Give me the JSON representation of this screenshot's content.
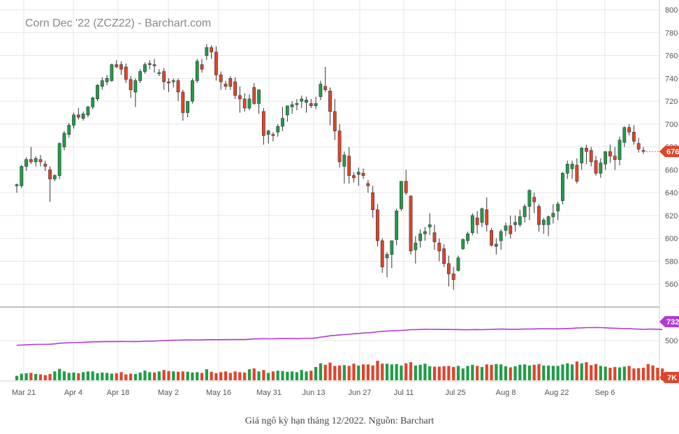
{
  "caption": "Giá ngô kỳ hạn tháng 12/2022. Nguồn: Barchart",
  "colors": {
    "up": "#1f9d47",
    "down": "#e0442a",
    "volume_line": "#b03bd6",
    "grid": "#e6e6e6",
    "text": "#555555",
    "last_price_badge": "#e0442a",
    "volume_badge": "#b03bd6"
  },
  "chart_data": {
    "type": "candlestick",
    "title": "Corn Dec '22 (ZCZ22) - Barchart.com",
    "price_axis": {
      "ticks": [
        560,
        580,
        600,
        620,
        640,
        660,
        680,
        700,
        720,
        740,
        760,
        780,
        800
      ],
      "range": [
        540,
        800
      ]
    },
    "volume_axis": {
      "ticks": [
        "500"
      ],
      "range_k": [
        0,
        1000
      ]
    },
    "x_ticks": [
      "Mar 21",
      "Apr 4",
      "Apr 18",
      "May 2",
      "May 16",
      "May 31",
      "Jun 13",
      "Jun 27",
      "Jul 11",
      "Jul 25",
      "Aug 8",
      "Aug 22",
      "Sep 6"
    ],
    "last_price_label": "676",
    "volume_avg_label": "732",
    "volume_last_label": "7K",
    "candles": [
      {
        "o": 646,
        "h": 648,
        "l": 640,
        "c": 647
      },
      {
        "o": 646,
        "h": 664,
        "l": 644,
        "c": 663
      },
      {
        "o": 663,
        "h": 671,
        "l": 659,
        "c": 669
      },
      {
        "o": 669,
        "h": 680,
        "l": 665,
        "c": 667
      },
      {
        "o": 667,
        "h": 672,
        "l": 663,
        "c": 670
      },
      {
        "o": 669,
        "h": 673,
        "l": 663,
        "c": 667
      },
      {
        "o": 665,
        "h": 668,
        "l": 659,
        "c": 663
      },
      {
        "o": 660,
        "h": 663,
        "l": 632,
        "c": 652
      },
      {
        "o": 652,
        "h": 656,
        "l": 650,
        "c": 655
      },
      {
        "o": 655,
        "h": 684,
        "l": 652,
        "c": 683
      },
      {
        "o": 680,
        "h": 694,
        "l": 677,
        "c": 692
      },
      {
        "o": 691,
        "h": 701,
        "l": 688,
        "c": 699
      },
      {
        "o": 699,
        "h": 710,
        "l": 696,
        "c": 708
      },
      {
        "o": 708,
        "h": 714,
        "l": 704,
        "c": 706
      },
      {
        "o": 705,
        "h": 711,
        "l": 703,
        "c": 709
      },
      {
        "o": 708,
        "h": 716,
        "l": 706,
        "c": 715
      },
      {
        "o": 715,
        "h": 724,
        "l": 713,
        "c": 723
      },
      {
        "o": 722,
        "h": 735,
        "l": 720,
        "c": 734
      },
      {
        "o": 733,
        "h": 741,
        "l": 730,
        "c": 738
      },
      {
        "o": 737,
        "h": 743,
        "l": 734,
        "c": 740
      },
      {
        "o": 738,
        "h": 753,
        "l": 737,
        "c": 752
      },
      {
        "o": 752,
        "h": 756,
        "l": 749,
        "c": 750
      },
      {
        "o": 752,
        "h": 755,
        "l": 743,
        "c": 748
      },
      {
        "o": 750,
        "h": 753,
        "l": 736,
        "c": 739
      },
      {
        "o": 739,
        "h": 742,
        "l": 723,
        "c": 730
      },
      {
        "o": 728,
        "h": 740,
        "l": 715,
        "c": 738
      },
      {
        "o": 738,
        "h": 748,
        "l": 736,
        "c": 746
      },
      {
        "o": 746,
        "h": 754,
        "l": 744,
        "c": 752
      },
      {
        "o": 752,
        "h": 756,
        "l": 748,
        "c": 753
      },
      {
        "o": 752,
        "h": 757,
        "l": 745,
        "c": 751
      },
      {
        "o": 745,
        "h": 748,
        "l": 742,
        "c": 745
      },
      {
        "o": 746,
        "h": 749,
        "l": 730,
        "c": 737
      },
      {
        "o": 737,
        "h": 740,
        "l": 728,
        "c": 736
      },
      {
        "o": 737,
        "h": 740,
        "l": 732,
        "c": 738
      },
      {
        "o": 738,
        "h": 740,
        "l": 720,
        "c": 728
      },
      {
        "o": 728,
        "h": 730,
        "l": 703,
        "c": 710
      },
      {
        "o": 710,
        "h": 720,
        "l": 706,
        "c": 720
      },
      {
        "o": 720,
        "h": 740,
        "l": 718,
        "c": 738
      },
      {
        "o": 738,
        "h": 757,
        "l": 736,
        "c": 755
      },
      {
        "o": 752,
        "h": 757,
        "l": 745,
        "c": 748
      },
      {
        "o": 760,
        "h": 770,
        "l": 756,
        "c": 767
      },
      {
        "o": 767,
        "h": 769,
        "l": 757,
        "c": 763
      },
      {
        "o": 763,
        "h": 768,
        "l": 738,
        "c": 743
      },
      {
        "o": 743,
        "h": 746,
        "l": 730,
        "c": 737
      },
      {
        "o": 735,
        "h": 738,
        "l": 730,
        "c": 733
      },
      {
        "o": 740,
        "h": 742,
        "l": 730,
        "c": 733
      },
      {
        "o": 737,
        "h": 741,
        "l": 722,
        "c": 725
      },
      {
        "o": 725,
        "h": 733,
        "l": 710,
        "c": 722
      },
      {
        "o": 722,
        "h": 727,
        "l": 711,
        "c": 714
      },
      {
        "o": 714,
        "h": 726,
        "l": 712,
        "c": 722
      },
      {
        "o": 732,
        "h": 736,
        "l": 717,
        "c": 718
      },
      {
        "o": 718,
        "h": 728,
        "l": 709,
        "c": 730
      },
      {
        "o": 711,
        "h": 714,
        "l": 682,
        "c": 690
      },
      {
        "o": 691,
        "h": 695,
        "l": 683,
        "c": 694
      },
      {
        "o": 691,
        "h": 693,
        "l": 685,
        "c": 690
      },
      {
        "o": 693,
        "h": 700,
        "l": 689,
        "c": 698
      },
      {
        "o": 698,
        "h": 715,
        "l": 694,
        "c": 705
      },
      {
        "o": 708,
        "h": 716,
        "l": 702,
        "c": 716
      },
      {
        "o": 715,
        "h": 720,
        "l": 709,
        "c": 717
      },
      {
        "o": 717,
        "h": 722,
        "l": 712,
        "c": 718
      },
      {
        "o": 720,
        "h": 725,
        "l": 714,
        "c": 722
      },
      {
        "o": 719,
        "h": 724,
        "l": 710,
        "c": 721
      },
      {
        "o": 718,
        "h": 722,
        "l": 714,
        "c": 716
      },
      {
        "o": 716,
        "h": 724,
        "l": 713,
        "c": 718
      },
      {
        "o": 724,
        "h": 738,
        "l": 721,
        "c": 735
      },
      {
        "o": 733,
        "h": 750,
        "l": 728,
        "c": 730
      },
      {
        "o": 729,
        "h": 732,
        "l": 699,
        "c": 711
      },
      {
        "o": 711,
        "h": 722,
        "l": 686,
        "c": 694
      },
      {
        "o": 694,
        "h": 700,
        "l": 662,
        "c": 667
      },
      {
        "o": 663,
        "h": 676,
        "l": 648,
        "c": 673
      },
      {
        "o": 672,
        "h": 680,
        "l": 648,
        "c": 655
      },
      {
        "o": 655,
        "h": 658,
        "l": 649,
        "c": 653
      },
      {
        "o": 656,
        "h": 662,
        "l": 646,
        "c": 658
      },
      {
        "o": 657,
        "h": 661,
        "l": 652,
        "c": 655
      },
      {
        "o": 648,
        "h": 651,
        "l": 640,
        "c": 646
      },
      {
        "o": 640,
        "h": 646,
        "l": 618,
        "c": 625
      },
      {
        "o": 625,
        "h": 630,
        "l": 593,
        "c": 598
      },
      {
        "o": 598,
        "h": 600,
        "l": 570,
        "c": 575
      },
      {
        "o": 583,
        "h": 588,
        "l": 566,
        "c": 586
      },
      {
        "o": 586,
        "h": 598,
        "l": 574,
        "c": 598
      },
      {
        "o": 599,
        "h": 626,
        "l": 594,
        "c": 624
      },
      {
        "o": 626,
        "h": 650,
        "l": 624,
        "c": 650
      },
      {
        "o": 650,
        "h": 660,
        "l": 638,
        "c": 640
      },
      {
        "o": 637,
        "h": 638,
        "l": 586,
        "c": 589
      },
      {
        "o": 590,
        "h": 602,
        "l": 578,
        "c": 596
      },
      {
        "o": 598,
        "h": 608,
        "l": 592,
        "c": 604
      },
      {
        "o": 604,
        "h": 610,
        "l": 598,
        "c": 606
      },
      {
        "o": 610,
        "h": 622,
        "l": 603,
        "c": 612
      },
      {
        "o": 605,
        "h": 612,
        "l": 590,
        "c": 597
      },
      {
        "o": 596,
        "h": 600,
        "l": 580,
        "c": 589
      },
      {
        "o": 591,
        "h": 595,
        "l": 575,
        "c": 578
      },
      {
        "o": 578,
        "h": 585,
        "l": 558,
        "c": 569
      },
      {
        "o": 569,
        "h": 575,
        "l": 555,
        "c": 564
      },
      {
        "o": 572,
        "h": 585,
        "l": 571,
        "c": 583
      },
      {
        "o": 591,
        "h": 600,
        "l": 590,
        "c": 599
      },
      {
        "o": 598,
        "h": 606,
        "l": 595,
        "c": 604
      },
      {
        "o": 605,
        "h": 622,
        "l": 603,
        "c": 620
      },
      {
        "o": 618,
        "h": 624,
        "l": 604,
        "c": 612
      },
      {
        "o": 614,
        "h": 627,
        "l": 610,
        "c": 626
      },
      {
        "o": 625,
        "h": 636,
        "l": 606,
        "c": 612
      },
      {
        "o": 607,
        "h": 609,
        "l": 593,
        "c": 594
      },
      {
        "o": 593,
        "h": 600,
        "l": 586,
        "c": 595
      },
      {
        "o": 598,
        "h": 608,
        "l": 590,
        "c": 606
      },
      {
        "o": 607,
        "h": 614,
        "l": 602,
        "c": 611
      },
      {
        "o": 611,
        "h": 620,
        "l": 600,
        "c": 604
      },
      {
        "o": 612,
        "h": 620,
        "l": 606,
        "c": 614
      },
      {
        "o": 612,
        "h": 625,
        "l": 610,
        "c": 619
      },
      {
        "o": 619,
        "h": 630,
        "l": 614,
        "c": 628
      },
      {
        "o": 628,
        "h": 643,
        "l": 616,
        "c": 642
      },
      {
        "o": 636,
        "h": 640,
        "l": 622,
        "c": 632
      },
      {
        "o": 628,
        "h": 630,
        "l": 606,
        "c": 612
      },
      {
        "o": 612,
        "h": 618,
        "l": 604,
        "c": 616
      },
      {
        "o": 612,
        "h": 620,
        "l": 602,
        "c": 619
      },
      {
        "o": 619,
        "h": 630,
        "l": 613,
        "c": 622
      },
      {
        "o": 624,
        "h": 632,
        "l": 616,
        "c": 630
      },
      {
        "o": 633,
        "h": 658,
        "l": 630,
        "c": 657
      },
      {
        "o": 657,
        "h": 668,
        "l": 652,
        "c": 665
      },
      {
        "o": 661,
        "h": 668,
        "l": 652,
        "c": 665
      },
      {
        "o": 664,
        "h": 670,
        "l": 648,
        "c": 650
      },
      {
        "o": 666,
        "h": 680,
        "l": 660,
        "c": 679
      },
      {
        "o": 679,
        "h": 682,
        "l": 665,
        "c": 676
      },
      {
        "o": 677,
        "h": 680,
        "l": 663,
        "c": 667
      },
      {
        "o": 668,
        "h": 672,
        "l": 655,
        "c": 657
      },
      {
        "o": 657,
        "h": 670,
        "l": 653,
        "c": 666
      },
      {
        "o": 665,
        "h": 676,
        "l": 660,
        "c": 676
      },
      {
        "o": 676,
        "h": 682,
        "l": 666,
        "c": 672
      },
      {
        "o": 672,
        "h": 680,
        "l": 660,
        "c": 669
      },
      {
        "o": 669,
        "h": 689,
        "l": 664,
        "c": 686
      },
      {
        "o": 684,
        "h": 698,
        "l": 680,
        "c": 697
      },
      {
        "o": 697,
        "h": 700,
        "l": 690,
        "c": 693
      },
      {
        "o": 693,
        "h": 699,
        "l": 682,
        "c": 685
      },
      {
        "o": 683,
        "h": 688,
        "l": 675,
        "c": 678
      },
      {
        "o": 677,
        "h": 680,
        "l": 674,
        "c": 676
      }
    ],
    "volume": [
      60,
      90,
      95,
      100,
      85,
      80,
      70,
      85,
      120,
      155,
      120,
      100,
      105,
      95,
      110,
      120,
      120,
      95,
      105,
      100,
      90,
      95,
      110,
      80,
      90,
      85,
      105,
      130,
      110,
      105,
      120,
      140,
      125,
      120,
      115,
      120,
      115,
      105,
      110,
      100,
      150,
      115,
      95,
      110,
      120,
      100,
      120,
      110,
      105,
      150,
      160,
      120,
      140,
      100,
      120,
      130,
      125,
      115,
      120,
      110,
      140,
      120,
      130,
      180,
      230,
      210,
      240,
      195,
      200,
      205,
      195,
      225,
      200,
      215,
      215,
      200,
      265,
      225,
      225,
      215,
      220,
      200,
      230,
      245,
      200,
      210,
      225,
      190,
      185,
      185,
      190,
      195,
      180,
      195,
      160,
      195,
      210,
      195,
      180,
      215,
      210,
      220,
      215,
      190,
      175,
      190,
      210,
      215,
      200,
      210,
      220,
      200,
      200,
      195,
      195,
      215,
      230,
      215,
      255,
      230,
      245,
      205,
      220,
      195,
      185,
      170,
      180,
      175,
      185,
      195,
      160,
      165,
      170,
      220,
      200,
      170,
      160
    ]
  }
}
